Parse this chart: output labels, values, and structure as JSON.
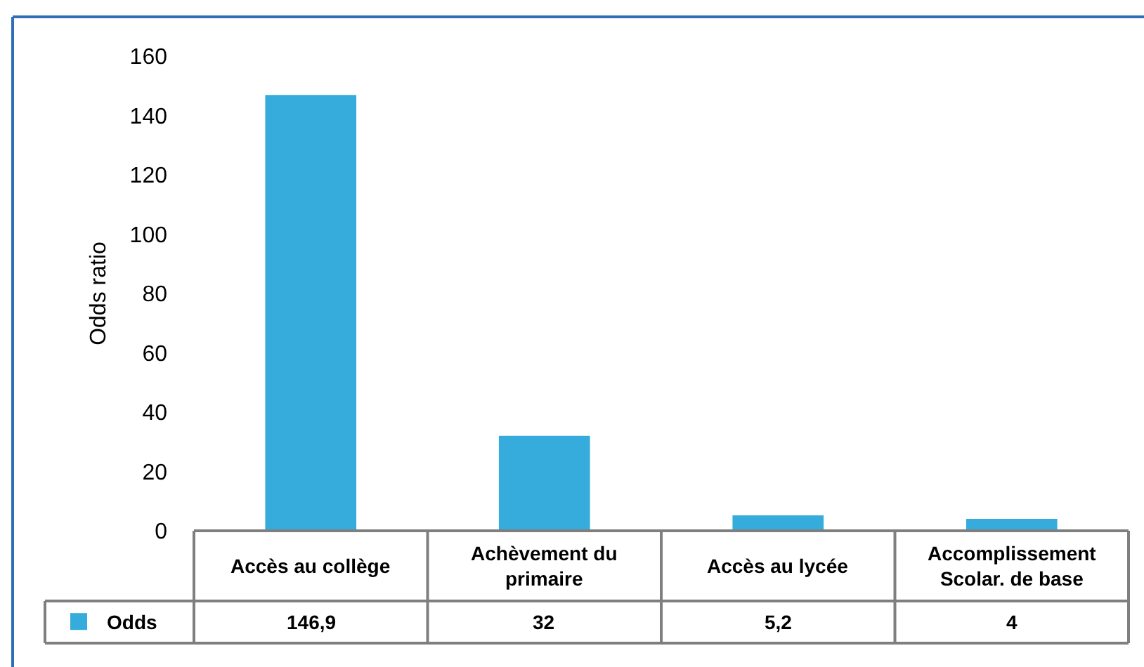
{
  "chart_data": {
    "type": "bar",
    "ylabel": "Odds ratio",
    "categories": [
      "Accès au collège",
      "Achèvement du primaire",
      "Accès au lycée",
      "Accomplissement Scolar. de base"
    ],
    "series": [
      {
        "name": "Odds",
        "color": "#36acdc",
        "values": [
          146.9,
          32,
          5.2,
          4
        ],
        "value_labels": [
          "146,9",
          "32",
          "5,2",
          "4"
        ]
      }
    ],
    "ylim": [
      0,
      160
    ],
    "yticks": [
      0,
      20,
      40,
      60,
      80,
      100,
      120,
      140,
      160
    ],
    "legend": "bottom left"
  }
}
